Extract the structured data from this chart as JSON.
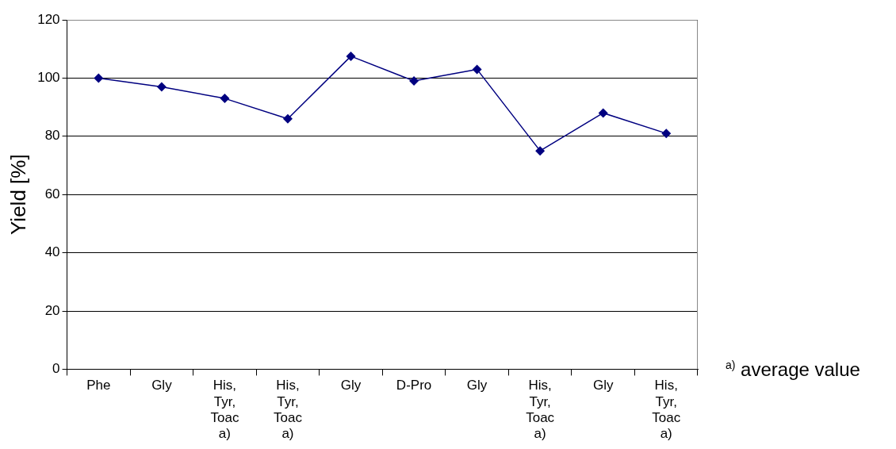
{
  "chart_data": {
    "type": "line",
    "ylabel": "Yield [%]",
    "categories": [
      "Phe",
      "Gly",
      "His, Tyr, Toac a)",
      "His, Tyr, Toac a)",
      "Gly",
      "D-Pro",
      "Gly",
      "His, Tyr, Toac a)",
      "Gly",
      "His, Tyr, Toac a)"
    ],
    "series": [
      {
        "color": "#000080",
        "values": [
          100,
          97,
          93,
          86,
          107.5,
          99,
          103,
          75,
          88,
          81
        ]
      }
    ],
    "ylim": [
      0,
      120
    ],
    "yticks": [
      0,
      20,
      40,
      60,
      80,
      100,
      120
    ],
    "grid": "y",
    "legend": false,
    "marker": "diamond",
    "line_style": "solid",
    "annotations": [
      "$^{a)}$ average value"
    ]
  }
}
